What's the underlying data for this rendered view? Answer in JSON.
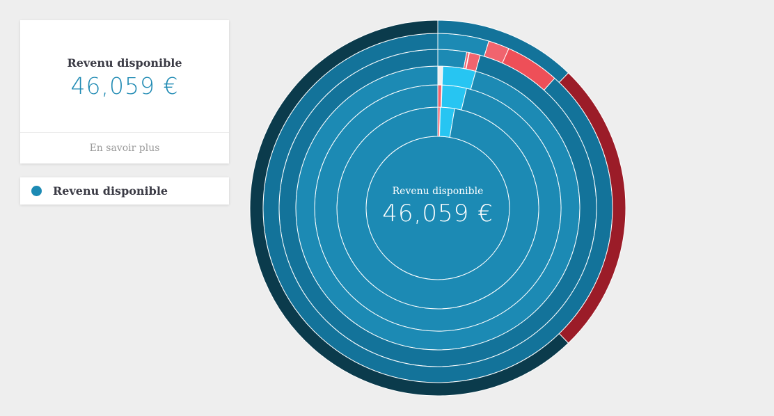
{
  "card": {
    "title": "Revenu disponible",
    "value": "46,059 €",
    "link_label": "En savoir plus"
  },
  "legend": {
    "items": [
      {
        "label": "Revenu disponible",
        "color": "#1c8ab4"
      }
    ]
  },
  "chart_data": {
    "type": "sunburst",
    "center_label": "Revenu disponible",
    "center_value": "46,059 €",
    "colors": {
      "base": "#1c8ab4",
      "mid": "#13739a",
      "dark": "#0b3b4c",
      "light_blue": "#27c5f2",
      "salmon": "#f0646e",
      "red": "#ee4f58",
      "dark_red": "#9b1c28"
    },
    "rings": [
      {
        "arcs": [
          {
            "start": 0,
            "end": 360,
            "color": "base"
          }
        ]
      },
      {
        "arcs": [
          {
            "start": 0,
            "end": 1.3,
            "color": "salmon"
          },
          {
            "start": 1.4,
            "end": 9.6,
            "color": "light_blue"
          },
          {
            "start": 9.6,
            "end": 360,
            "color": "base"
          }
        ]
      },
      {
        "arcs": [
          {
            "start": 0,
            "end": 1.8,
            "color": "salmon"
          },
          {
            "start": 2.0,
            "end": 13.5,
            "color": "light_blue"
          },
          {
            "start": 13.5,
            "end": 360,
            "color": "base"
          }
        ]
      },
      {
        "arcs": [
          {
            "start": 2.0,
            "end": 15.5,
            "color": "light_blue"
          },
          {
            "start": 15.5,
            "end": 360,
            "color": "base"
          }
        ]
      },
      {
        "arcs": [
          {
            "start": 0,
            "end": 10.5,
            "color": "base"
          },
          {
            "start": 10.5,
            "end": 11.3,
            "color": "salmon"
          },
          {
            "start": 11.5,
            "end": 15.5,
            "color": "salmon"
          },
          {
            "start": 15.5,
            "end": 360,
            "color": "mid"
          }
        ]
      },
      {
        "arcs": [
          {
            "start": 0,
            "end": 17.0,
            "color": "base"
          },
          {
            "start": 17.0,
            "end": 24.0,
            "color": "salmon"
          },
          {
            "start": 24.0,
            "end": 42.0,
            "color": "red"
          },
          {
            "start": 42.0,
            "end": 360,
            "color": "mid"
          }
        ]
      },
      {
        "arcs": [
          {
            "start": 0,
            "end": 44.0,
            "color": "mid"
          },
          {
            "start": 44.0,
            "end": 136.0,
            "color": "dark_red"
          },
          {
            "start": 136.0,
            "end": 360,
            "color": "dark"
          }
        ]
      }
    ]
  }
}
